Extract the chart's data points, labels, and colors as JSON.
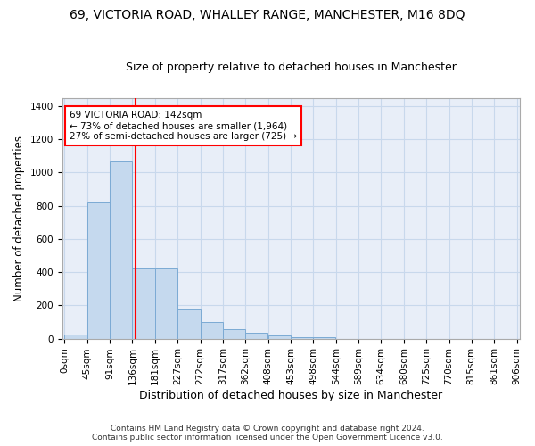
{
  "title": "69, VICTORIA ROAD, WHALLEY RANGE, MANCHESTER, M16 8DQ",
  "subtitle": "Size of property relative to detached houses in Manchester",
  "xlabel": "Distribution of detached houses by size in Manchester",
  "ylabel": "Number of detached properties",
  "footer_line1": "Contains HM Land Registry data © Crown copyright and database right 2024.",
  "footer_line2": "Contains public sector information licensed under the Open Government Licence v3.0.",
  "bin_starts": [
    0,
    45,
    91,
    136,
    181,
    227,
    272,
    317,
    362,
    408,
    453,
    498,
    544,
    589,
    634,
    680,
    725,
    770,
    815,
    861
  ],
  "bin_width": 45,
  "bin_labels": [
    "0sqm",
    "45sqm",
    "91sqm",
    "136sqm",
    "181sqm",
    "227sqm",
    "272sqm",
    "317sqm",
    "362sqm",
    "408sqm",
    "453sqm",
    "498sqm",
    "544sqm",
    "589sqm",
    "634sqm",
    "680sqm",
    "725sqm",
    "770sqm",
    "815sqm",
    "861sqm",
    "906sqm"
  ],
  "bar_heights": [
    25,
    820,
    1065,
    420,
    420,
    180,
    100,
    55,
    35,
    20,
    10,
    10,
    0,
    0,
    0,
    0,
    0,
    0,
    0,
    0
  ],
  "bar_color": "#c5d9ee",
  "bar_edge_color": "#7baad4",
  "grid_color": "#c8d8ec",
  "background_color": "#e8eef8",
  "red_line_x": 142,
  "annotation_line1": "69 VICTORIA ROAD: 142sqm",
  "annotation_line2": "← 73% of detached houses are smaller (1,964)",
  "annotation_line3": "27% of semi-detached houses are larger (725) →",
  "ylim_max": 1450,
  "yticks": [
    0,
    200,
    400,
    600,
    800,
    1000,
    1200,
    1400
  ],
  "title_fontsize": 10,
  "subtitle_fontsize": 9,
  "ylabel_fontsize": 8.5,
  "xlabel_fontsize": 9,
  "tick_fontsize": 7.5,
  "footer_fontsize": 6.5
}
